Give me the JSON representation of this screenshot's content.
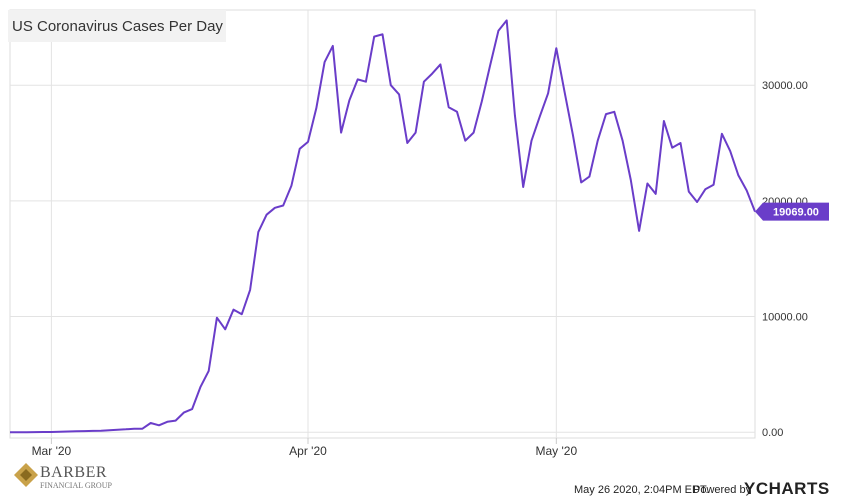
{
  "chart_data": {
    "type": "line",
    "title": "US Coronavirus Cases Per Day",
    "xlabel": "",
    "ylabel": "",
    "ylim": [
      -500,
      36500
    ],
    "yticks": [
      0,
      10000,
      20000,
      30000
    ],
    "ytick_labels": [
      "0.00",
      "10000.00",
      "20000.00",
      "30000.00"
    ],
    "xticks": [
      "2020-03-01",
      "2020-04-01",
      "2020-05-01"
    ],
    "xtick_labels": [
      "Mar '20",
      "Apr '20",
      "May '20"
    ],
    "grid": true,
    "last_value_label": "19069.00",
    "series": [
      {
        "color": "#6a3dc9",
        "x": [
          "2020-02-25",
          "2020-02-26",
          "2020-02-27",
          "2020-02-28",
          "2020-02-29",
          "2020-03-01",
          "2020-03-02",
          "2020-03-03",
          "2020-03-04",
          "2020-03-05",
          "2020-03-06",
          "2020-03-07",
          "2020-03-08",
          "2020-03-09",
          "2020-03-10",
          "2020-03-11",
          "2020-03-12",
          "2020-03-13",
          "2020-03-14",
          "2020-03-15",
          "2020-03-16",
          "2020-03-17",
          "2020-03-18",
          "2020-03-19",
          "2020-03-20",
          "2020-03-21",
          "2020-03-22",
          "2020-03-23",
          "2020-03-24",
          "2020-03-25",
          "2020-03-26",
          "2020-03-27",
          "2020-03-28",
          "2020-03-29",
          "2020-03-30",
          "2020-03-31",
          "2020-04-01",
          "2020-04-02",
          "2020-04-03",
          "2020-04-04",
          "2020-04-05",
          "2020-04-06",
          "2020-04-07",
          "2020-04-08",
          "2020-04-09",
          "2020-04-10",
          "2020-04-11",
          "2020-04-12",
          "2020-04-13",
          "2020-04-14",
          "2020-04-15",
          "2020-04-16",
          "2020-04-17",
          "2020-04-18",
          "2020-04-19",
          "2020-04-20",
          "2020-04-21",
          "2020-04-22",
          "2020-04-23",
          "2020-04-24",
          "2020-04-25",
          "2020-04-26",
          "2020-04-27",
          "2020-04-28",
          "2020-04-29",
          "2020-04-30",
          "2020-05-01",
          "2020-05-02",
          "2020-05-03",
          "2020-05-04",
          "2020-05-05",
          "2020-05-06",
          "2020-05-07",
          "2020-05-08",
          "2020-05-09",
          "2020-05-10",
          "2020-05-11",
          "2020-05-12",
          "2020-05-13",
          "2020-05-14",
          "2020-05-15",
          "2020-05-16",
          "2020-05-17",
          "2020-05-18",
          "2020-05-19",
          "2020-05-20",
          "2020-05-21",
          "2020-05-22",
          "2020-05-23",
          "2020-05-24",
          "2020-05-25"
        ],
        "values": [
          0,
          0,
          0,
          10,
          20,
          20,
          40,
          60,
          80,
          100,
          110,
          130,
          170,
          220,
          250,
          300,
          300,
          800,
          600,
          900,
          1000,
          1700,
          2000,
          3900,
          5300,
          9900,
          8900,
          10600,
          10200,
          12300,
          17300,
          18800,
          19400,
          19600,
          21300,
          24500,
          25100,
          28000,
          32000,
          33400,
          25900,
          28700,
          30500,
          30300,
          34200,
          34400,
          30000,
          29200,
          25000,
          25900,
          30300,
          31000,
          31800,
          28100,
          27700,
          25200,
          25900,
          28600,
          31700,
          34700,
          35600,
          27400,
          21200,
          25200,
          27300,
          29300,
          33200,
          29400,
          25700,
          21600,
          22100,
          25200,
          27500,
          27700,
          25200,
          21800,
          17400,
          21500,
          20600,
          26900,
          24600,
          25000,
          20800,
          19900,
          21000,
          21400,
          25800,
          24300,
          22200,
          20900,
          19069
        ]
      }
    ]
  },
  "footer": {
    "date": "May 26 2020, 2:04PM EDT.",
    "powered": "Powered by",
    "brand": "YCHARTS"
  },
  "logo": {
    "name": "BARBER",
    "sub": "FINANCIAL GROUP"
  }
}
